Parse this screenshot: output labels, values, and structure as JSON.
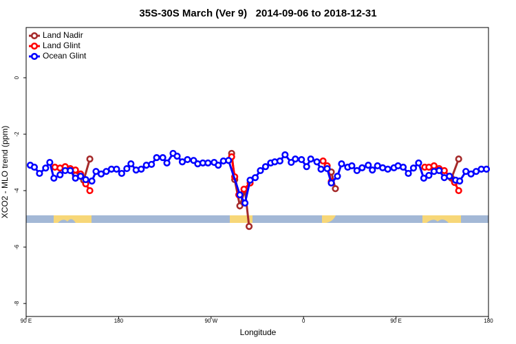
{
  "chart_data": {
    "type": "line",
    "title": "35S-30S March (Ver 9)   2014-09-06 to 2018-12-31",
    "x_label": "Longitude",
    "y_label": "XCO2 - MLO trend (ppm)",
    "xlim": [
      90,
      540
    ],
    "ylim": [
      -8.46,
      1.78
    ],
    "xticks": [
      {
        "value": 90,
        "label": "90 E"
      },
      180,
      {
        "value": 270,
        "label": "90 W"
      },
      {
        "value": 360,
        "label": "0"
      },
      {
        "value": 450,
        "label": "90 E"
      },
      {
        "value": 540,
        "label": "180"
      }
    ],
    "yticks": [
      0,
      -2,
      -4,
      -6,
      -8
    ],
    "grid": false,
    "legend": "top-left",
    "series": [
      {
        "name": "Land Nadir",
        "color": "#a52a2a",
        "x": [
          138,
          146,
          152,
          null,
          290,
          293,
          298,
          303,
          307,
          null,
          387,
          391,
          null,
          504,
          511
        ],
        "values": [
          -3.46,
          -3.63,
          -2.88,
          null,
          -2.68,
          -3.61,
          -4.54,
          -3.98,
          -5.27,
          null,
          -3.34,
          -3.93,
          null,
          -3.56,
          -2.88
        ]
      },
      {
        "name": "Land Glint",
        "color": "#ff0000",
        "x": [
          118,
          123,
          128,
          133,
          138,
          143,
          148,
          152,
          null,
          290,
          293,
          297,
          302,
          308,
          null,
          379,
          383,
          387,
          null,
          478,
          482,
          487,
          492,
          497,
          502,
          507,
          511
        ],
        "values": [
          -3.17,
          -3.2,
          -3.15,
          -3.22,
          -3.27,
          -3.41,
          -3.76,
          -4.0,
          null,
          -2.8,
          -3.51,
          -4.15,
          -3.95,
          -3.73,
          null,
          -2.95,
          -3.12,
          -3.68,
          null,
          -3.17,
          -3.17,
          -3.12,
          -3.22,
          -3.29,
          -3.49,
          -3.71,
          -4.0
        ]
      },
      {
        "name": "Ocean Glint",
        "color": "#0000ff",
        "x": [
          94,
          98,
          103,
          109,
          113,
          117,
          123,
          128,
          133,
          138,
          143,
          148,
          154,
          158,
          163,
          168,
          173,
          178,
          183,
          188,
          192,
          197,
          202,
          207,
          212,
          217,
          223,
          227,
          233,
          237,
          242,
          247,
          253,
          257,
          262,
          267,
          273,
          277,
          282,
          287,
          298,
          303,
          308,
          313,
          318,
          323,
          328,
          332,
          337,
          342,
          348,
          352,
          358,
          363,
          367,
          373,
          377,
          383,
          387,
          393,
          397,
          403,
          407,
          412,
          417,
          423,
          427,
          432,
          437,
          442,
          448,
          452,
          457,
          462,
          467,
          472,
          477,
          482,
          487,
          492,
          497,
          502,
          508,
          512,
          518,
          523,
          528,
          533,
          538
        ],
        "values": [
          -3.1,
          -3.17,
          -3.39,
          -3.2,
          -3.0,
          -3.56,
          -3.44,
          -3.29,
          -3.29,
          -3.56,
          -3.49,
          -3.61,
          -3.66,
          -3.32,
          -3.41,
          -3.32,
          -3.24,
          -3.24,
          -3.39,
          -3.22,
          -3.05,
          -3.27,
          -3.24,
          -3.1,
          -3.07,
          -2.83,
          -2.83,
          -3.02,
          -2.68,
          -2.78,
          -2.98,
          -2.9,
          -2.93,
          -3.05,
          -3.02,
          -3.02,
          -3.0,
          -3.1,
          -2.95,
          -2.93,
          -4.15,
          -4.44,
          -3.63,
          -3.54,
          -3.29,
          -3.15,
          -3.02,
          -2.98,
          -2.95,
          -2.73,
          -3.0,
          -2.88,
          -2.9,
          -3.15,
          -2.88,
          -2.98,
          -3.24,
          -3.22,
          -3.73,
          -3.49,
          -3.05,
          -3.17,
          -3.12,
          -3.29,
          -3.19,
          -3.1,
          -3.27,
          -3.12,
          -3.19,
          -3.24,
          -3.19,
          -3.12,
          -3.17,
          -3.39,
          -3.2,
          -3.02,
          -3.56,
          -3.46,
          -3.32,
          -3.29,
          -3.54,
          -3.49,
          -3.63,
          -3.66,
          -3.32,
          -3.41,
          -3.32,
          -3.24,
          -3.24
        ]
      }
    ]
  }
}
